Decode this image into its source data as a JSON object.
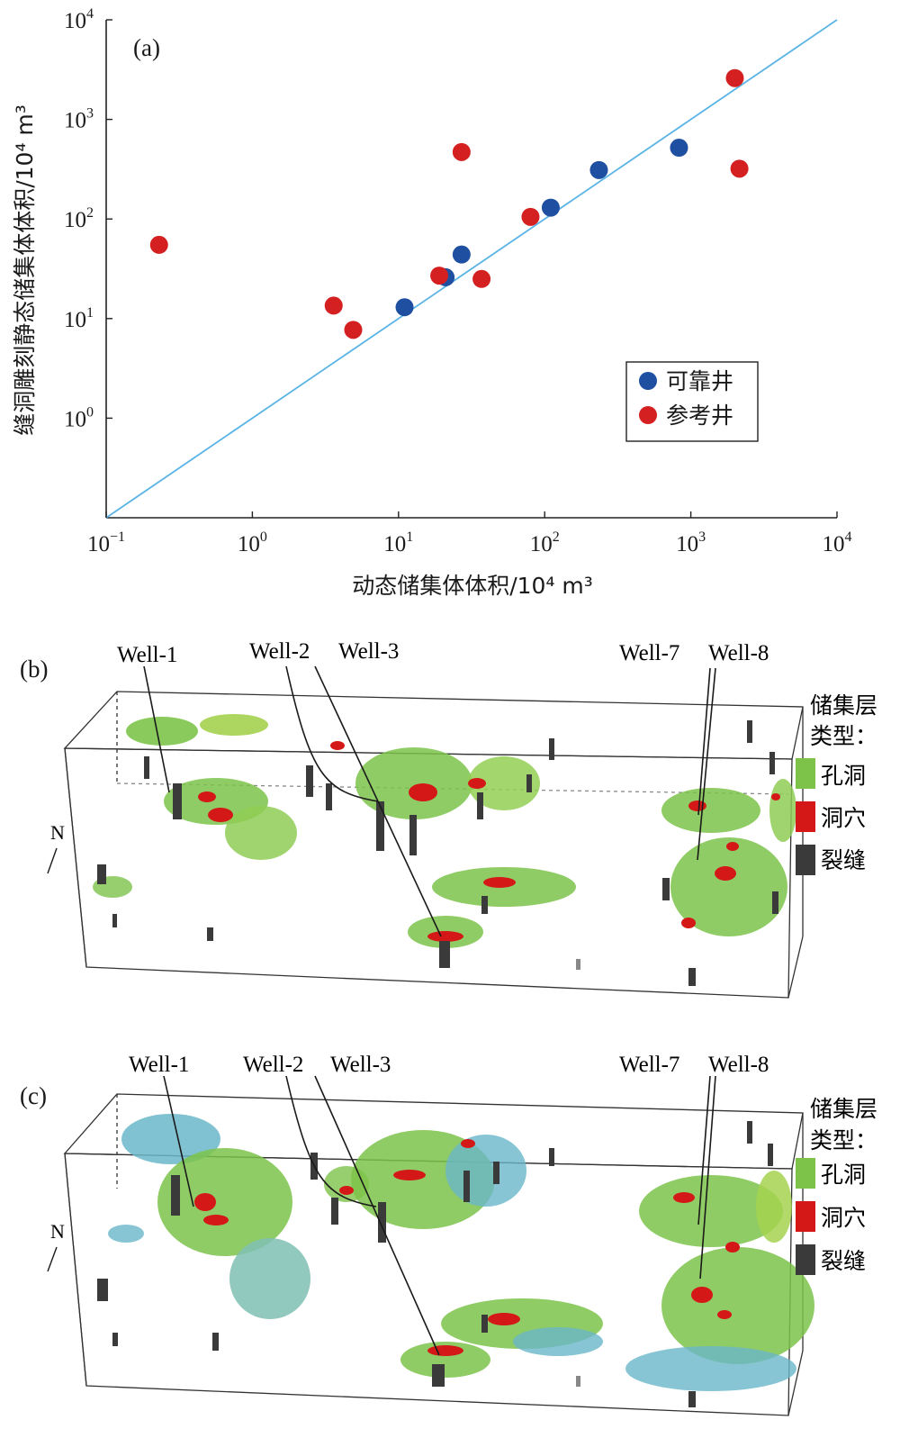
{
  "chart_data": {
    "type": "scatter",
    "panel_label": "(a)",
    "xlabel": "动态储集体体积/10⁴ m³",
    "ylabel": "缝洞雕刻静态储集体体积/10⁴ m³",
    "x_scale": "log",
    "y_scale": "log",
    "xlim": [
      0.1,
      10000
    ],
    "ylim": [
      0.1,
      10000
    ],
    "x_ticks": [
      {
        "value": 0.1,
        "base": "10",
        "exp": "−1"
      },
      {
        "value": 1,
        "base": "10",
        "exp": "0"
      },
      {
        "value": 10,
        "base": "10",
        "exp": "1"
      },
      {
        "value": 100,
        "base": "10",
        "exp": "2"
      },
      {
        "value": 1000,
        "base": "10",
        "exp": "3"
      },
      {
        "value": 10000,
        "base": "10",
        "exp": "4"
      }
    ],
    "y_ticks": [
      {
        "value": 1,
        "base": "10",
        "exp": "0"
      },
      {
        "value": 10,
        "base": "10",
        "exp": "1"
      },
      {
        "value": 100,
        "base": "10",
        "exp": "2"
      },
      {
        "value": 1000,
        "base": "10",
        "exp": "3"
      },
      {
        "value": 10000,
        "base": "10",
        "exp": "4"
      }
    ],
    "reference_line": {
      "type": "y=x",
      "color": "#5ab4e6"
    },
    "legend_position": "bottom-right",
    "series": [
      {
        "name": "可靠井",
        "color": "#1f4fa0",
        "points": [
          {
            "x": 11,
            "y": 13
          },
          {
            "x": 21,
            "y": 26
          },
          {
            "x": 27,
            "y": 44
          },
          {
            "x": 110,
            "y": 130
          },
          {
            "x": 235,
            "y": 310
          },
          {
            "x": 830,
            "y": 520
          }
        ]
      },
      {
        "name": "参考井",
        "color": "#d42020",
        "points": [
          {
            "x": 0.23,
            "y": 55
          },
          {
            "x": 3.6,
            "y": 13.5
          },
          {
            "x": 4.9,
            "y": 7.7
          },
          {
            "x": 19,
            "y": 27
          },
          {
            "x": 27,
            "y": 470
          },
          {
            "x": 37,
            "y": 25
          },
          {
            "x": 80,
            "y": 105
          },
          {
            "x": 2000,
            "y": 2600
          },
          {
            "x": 2150,
            "y": 320
          }
        ]
      }
    ]
  },
  "panels": [
    {
      "label": "(b)",
      "wells": [
        "Well-1",
        "Well-2",
        "Well-3",
        "Well-7",
        "Well-8"
      ],
      "north": "N",
      "legend_title": "储集层\n类型：",
      "legend_title_line1": "储集层",
      "legend_title_line2": "类型：",
      "legend_items": [
        {
          "label": "孔洞",
          "color": "#7dc34a"
        },
        {
          "label": "洞穴",
          "color": "#d41818"
        },
        {
          "label": "裂缝",
          "color": "#3a3a3a"
        }
      ]
    },
    {
      "label": "(c)",
      "wells": [
        "Well-1",
        "Well-2",
        "Well-3",
        "Well-7",
        "Well-8"
      ],
      "north": "N",
      "legend_title_line1": "储集层",
      "legend_title_line2": "类型：",
      "legend_items": [
        {
          "label": "孔洞",
          "color": "#7dc34a"
        },
        {
          "label": "洞穴",
          "color": "#d41818"
        },
        {
          "label": "裂缝",
          "color": "#3a3a3a"
        }
      ]
    }
  ]
}
